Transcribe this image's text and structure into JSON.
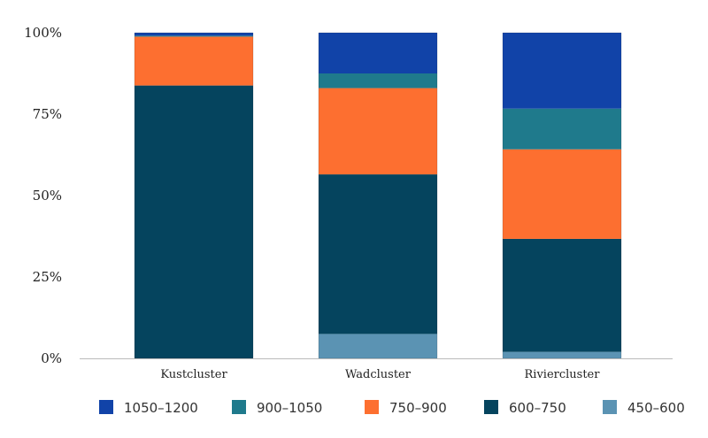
{
  "chart_data": {
    "type": "bar",
    "stacked": true,
    "normalized": true,
    "categories": [
      "Kustcluster",
      "Wadcluster",
      "Riviercluster"
    ],
    "series": [
      {
        "name": "450–600",
        "color": "#5b93b3",
        "values": [
          0.0,
          7.5,
          2.0
        ]
      },
      {
        "name": "600–750",
        "color": "#05445e",
        "values": [
          83.8,
          49.0,
          34.7
        ]
      },
      {
        "name": "750–900",
        "color": "#fd6f30",
        "values": [
          15.0,
          26.5,
          27.5
        ]
      },
      {
        "name": "900–1050",
        "color": "#1f7a8c",
        "values": [
          0.3,
          4.5,
          12.5
        ]
      },
      {
        "name": "1050–1200",
        "color": "#1143a8",
        "values": [
          0.9,
          12.5,
          23.3
        ]
      }
    ],
    "yticks": [
      "0%",
      "25%",
      "50%",
      "75%",
      "100%"
    ],
    "ylim": [
      0,
      100
    ],
    "legend_order": [
      "1050–1200",
      "900–1050",
      "750–900",
      "600–750",
      "450–600"
    ],
    "legend_position": "bottom",
    "grid": false
  }
}
